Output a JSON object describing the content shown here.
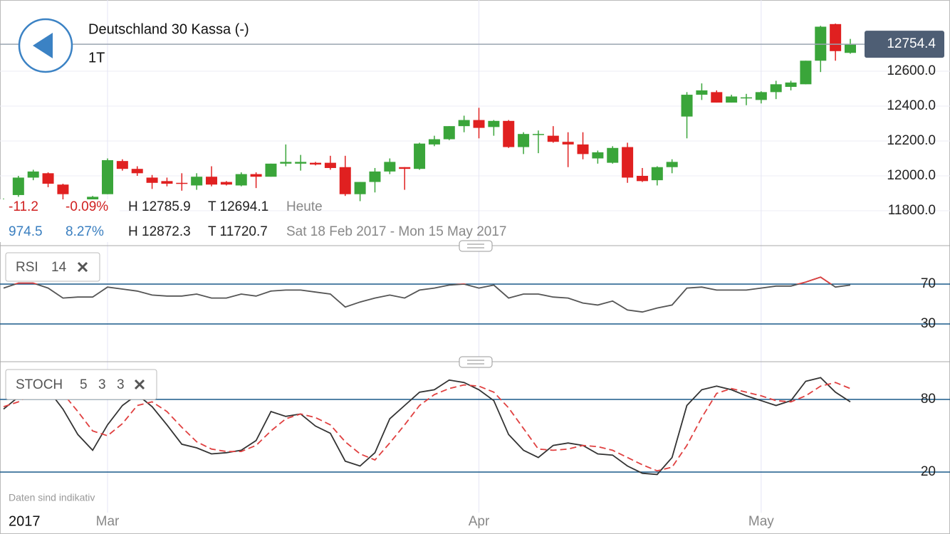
{
  "header": {
    "title": "Deutschland 30 Kassa (-)",
    "interval": "1T"
  },
  "info": {
    "rows": [
      [
        "-11.2",
        "-0.09%",
        "H 12785.9",
        "T 12694.1",
        "Heute"
      ],
      [
        "974.5",
        "8.27%",
        "H 12872.3",
        "T 11720.7",
        "Sat 18 Feb 2017 - Mon 15 May 2017"
      ]
    ]
  },
  "footer": {
    "note": "Daten sind indikativ",
    "year": "2017"
  },
  "chart_data": [
    {
      "type": "candlestick",
      "up_color": "#3aa53a",
      "down_color": "#e02020",
      "open": [
        11820,
        11890,
        11990,
        12015,
        11950,
        11830,
        11775,
        11895,
        12085,
        12040,
        11990,
        11970,
        11960,
        11945,
        11995,
        11965,
        11945,
        12010,
        11995,
        12070,
        12070,
        12075,
        12075,
        12050,
        11895,
        11965,
        12025,
        12050,
        12040,
        12180,
        12210,
        12285,
        12320,
        12280,
        12315,
        12165,
        12235,
        12230,
        12195,
        12180,
        12100,
        12075,
        12165,
        12000,
        11975,
        12050,
        12340,
        12465,
        12480,
        12420,
        12445,
        12435,
        12480,
        12510,
        12525,
        12660,
        12870,
        12705
      ],
      "high": [
        11870,
        12000,
        12035,
        12020,
        11955,
        11840,
        11885,
        12100,
        12095,
        12055,
        12005,
        11990,
        12015,
        12015,
        12055,
        11970,
        12020,
        12020,
        12070,
        12180,
        12120,
        12080,
        12115,
        12115,
        11965,
        12045,
        12100,
        12050,
        12190,
        12230,
        12285,
        12345,
        12390,
        12320,
        12320,
        12250,
        12260,
        12285,
        12250,
        12250,
        12145,
        12170,
        12190,
        12045,
        12055,
        12095,
        12480,
        12530,
        12490,
        12465,
        12470,
        12485,
        12545,
        12545,
        12660,
        12860,
        12873,
        12785
      ],
      "low": [
        11800,
        11880,
        11975,
        11935,
        11745,
        11760,
        11765,
        11895,
        12030,
        12000,
        11925,
        11940,
        11915,
        11920,
        11940,
        11945,
        11940,
        11930,
        11995,
        12055,
        12030,
        12060,
        12035,
        11885,
        11855,
        11905,
        12010,
        11920,
        12035,
        12170,
        12205,
        12250,
        12215,
        12230,
        12160,
        12125,
        12130,
        12190,
        12050,
        12095,
        12070,
        12070,
        11960,
        11965,
        11945,
        12015,
        12215,
        12435,
        12420,
        12420,
        12405,
        12415,
        12440,
        12490,
        12525,
        12595,
        12660,
        12700
      ],
      "close": [
        11860,
        11990,
        12025,
        11955,
        11895,
        11770,
        11880,
        12090,
        12040,
        12015,
        11960,
        11955,
        11955,
        11995,
        11950,
        11950,
        12010,
        11995,
        12070,
        12080,
        12080,
        12065,
        12045,
        11895,
        11965,
        12025,
        12080,
        12040,
        12185,
        12210,
        12285,
        12320,
        12275,
        12315,
        12165,
        12240,
        12240,
        12195,
        12180,
        12125,
        12135,
        12160,
        11990,
        11970,
        12050,
        12080,
        12465,
        12490,
        12420,
        12455,
        12450,
        12480,
        12525,
        12535,
        12660,
        12855,
        12715,
        12755
      ],
      "ylim": [
        11600,
        13008
      ],
      "yticks": [
        {
          "value": 11800,
          "label": "11800.0"
        },
        {
          "value": 12000,
          "label": "12000.0"
        },
        {
          "value": 12200,
          "label": "12200.0"
        },
        {
          "value": 12400,
          "label": "12400.0"
        },
        {
          "value": 12600,
          "label": "12600.0"
        }
      ],
      "last_price": {
        "value": 12754.4,
        "label": "12754.4"
      },
      "xticks": [
        {
          "value": 7,
          "label": "Mar"
        },
        {
          "value": 32,
          "label": "Apr"
        },
        {
          "value": 51,
          "label": "May"
        }
      ],
      "grid": true
    },
    {
      "type": "line",
      "name": "RSI",
      "params": [
        "14"
      ],
      "ylim": [
        0,
        100
      ],
      "yticks": [
        70,
        30
      ],
      "overbought_color": "#e04040",
      "series": [
        {
          "color": "#555555",
          "values": [
            66,
            71,
            71,
            66,
            56,
            57,
            57,
            67,
            65,
            63,
            59,
            58,
            58,
            60,
            56,
            56,
            60,
            58,
            63,
            64,
            64,
            62,
            60,
            47,
            52,
            56,
            59,
            56,
            64,
            66,
            69,
            70,
            66,
            69,
            56,
            60,
            60,
            57,
            56,
            51,
            49,
            53,
            44,
            42,
            46,
            49,
            66,
            67,
            64,
            64,
            64,
            66,
            68,
            68,
            72,
            77,
            67,
            69
          ]
        }
      ]
    },
    {
      "type": "line",
      "name": "STOCH",
      "params": [
        "5",
        "3",
        "3"
      ],
      "ylim": [
        0,
        100
      ],
      "yticks": [
        80,
        20
      ],
      "series": [
        {
          "color": "#333333",
          "dash": false,
          "values": [
            72,
            82,
            88,
            88,
            72,
            51,
            38,
            59,
            75,
            84,
            74,
            59,
            43,
            40,
            35,
            36,
            38,
            46,
            70,
            66,
            68,
            58,
            52,
            29,
            25,
            36,
            64,
            75,
            86,
            88,
            96,
            94,
            88,
            79,
            51,
            38,
            32,
            42,
            44,
            42,
            35,
            34,
            25,
            19,
            18,
            32,
            75,
            88,
            91,
            88,
            83,
            79,
            75,
            79,
            95,
            98,
            86,
            78
          ]
        },
        {
          "color": "#e04040",
          "dash": true,
          "values": [
            74,
            78,
            85,
            88,
            85,
            70,
            54,
            50,
            60,
            75,
            78,
            70,
            57,
            45,
            39,
            37,
            37,
            42,
            54,
            64,
            68,
            65,
            59,
            45,
            35,
            30,
            44,
            59,
            75,
            84,
            89,
            92,
            91,
            86,
            73,
            56,
            39,
            38,
            39,
            42,
            41,
            38,
            32,
            26,
            21,
            24,
            42,
            65,
            85,
            89,
            86,
            83,
            79,
            78,
            83,
            91,
            94,
            89
          ]
        }
      ]
    }
  ]
}
